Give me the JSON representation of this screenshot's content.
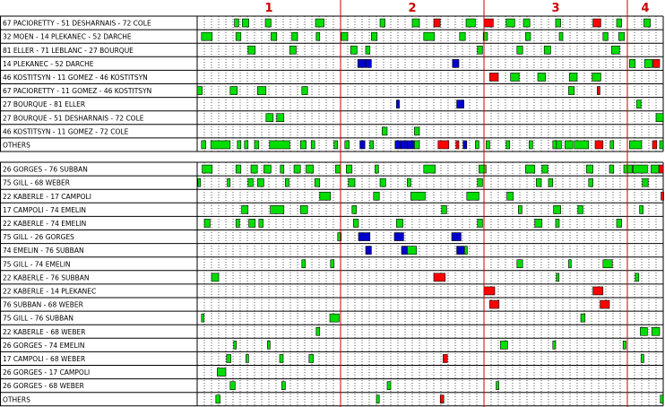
{
  "periods": [
    "1",
    "2",
    "3",
    "4"
  ],
  "colors": {
    "even": "#00dd00",
    "pp": "#ff0000",
    "pk": "#0000cc",
    "period_line": "#cc0000",
    "grid": "#000000",
    "grid_dot": "#555555"
  },
  "chart_data": {
    "type": "timeline",
    "x_unit": "game minute",
    "x_range": [
      0,
      65
    ],
    "period_starts": [
      0,
      20,
      40,
      60
    ],
    "forwards": [
      {
        "line": "67 PACIORETTY - 51 DESHARNAIS - 72 COLE",
        "shifts": [
          [
            5.2,
            5.8,
            "even"
          ],
          [
            6.3,
            7.2,
            "even"
          ],
          [
            9.5,
            10.3,
            "even"
          ],
          [
            16.5,
            17.7,
            "even"
          ],
          [
            25.5,
            26.2,
            "even"
          ],
          [
            30,
            31,
            "even"
          ],
          [
            33,
            33.9,
            "pp"
          ],
          [
            37.5,
            38.8,
            "even"
          ],
          [
            40,
            41.3,
            "pp"
          ],
          [
            43.1,
            44.3,
            "even"
          ],
          [
            45.5,
            46.4,
            "even"
          ],
          [
            50,
            50.7,
            "even"
          ],
          [
            55.2,
            56.3,
            "pp"
          ],
          [
            58.5,
            59.2,
            "even"
          ],
          [
            62.3,
            63.2,
            "even"
          ]
        ]
      },
      {
        "line": "32 MOEN - 14 PLEKANEC - 52 DARCHE",
        "shifts": [
          [
            0.6,
            2.1,
            "even"
          ],
          [
            5.4,
            6.1,
            "even"
          ],
          [
            10.3,
            11.1,
            "even"
          ],
          [
            13.2,
            14,
            "even"
          ],
          [
            16.6,
            17.1,
            "even"
          ],
          [
            20.1,
            21,
            "even"
          ],
          [
            24.3,
            25.1,
            "even"
          ],
          [
            31.6,
            33.1,
            "even"
          ],
          [
            36.6,
            37.4,
            "even"
          ],
          [
            39.9,
            40.5,
            "even"
          ],
          [
            45.8,
            46.5,
            "even"
          ],
          [
            50.5,
            51,
            "even"
          ],
          [
            56.6,
            57.3,
            "even"
          ],
          [
            58.8,
            59.6,
            "even"
          ]
        ]
      },
      {
        "line": "81 ELLER - 71 LEBLANC - 27 BOURQUE",
        "shifts": [
          [
            7.1,
            8.1,
            "even"
          ],
          [
            12.9,
            13.8,
            "even"
          ],
          [
            21.4,
            22.3,
            "even"
          ],
          [
            23.5,
            24.1,
            "even"
          ],
          [
            39.1,
            39.8,
            "even"
          ],
          [
            44.6,
            45.4,
            "even"
          ],
          [
            48.4,
            49.3,
            "even"
          ],
          [
            57.8,
            58.9,
            "even"
          ]
        ]
      },
      {
        "line": "14 PLEKANEC - 52 DARCHE",
        "shifts": [
          [
            22.4,
            23.5,
            "pk"
          ],
          [
            23.5,
            24.3,
            "pk"
          ],
          [
            35.6,
            36.5,
            "pk"
          ],
          [
            60.3,
            61.1,
            "even"
          ],
          [
            62.4,
            63.5,
            "even"
          ],
          [
            63.6,
            64.5,
            "pp"
          ]
        ]
      },
      {
        "line": "46 KOSTITSYN - 11 GOMEZ - 46 KOSTITSYN",
        "shifts": [
          [
            40.8,
            42,
            "pp"
          ],
          [
            43.7,
            44.9,
            "even"
          ],
          [
            47.5,
            48.6,
            "even"
          ],
          [
            51.9,
            53,
            "even"
          ],
          [
            55.1,
            56.3,
            "even"
          ]
        ]
      },
      {
        "line": "67 PACIORETTY - 11 GOMEZ - 46 KOSTITSYN",
        "shifts": [
          [
            0,
            0.7,
            "even"
          ],
          [
            4.6,
            5.6,
            "even"
          ],
          [
            8.4,
            9.6,
            "even"
          ],
          [
            14.6,
            15.4,
            "even"
          ],
          [
            51.8,
            52.6,
            "even"
          ],
          [
            55.8,
            56,
            "pp"
          ]
        ]
      },
      {
        "line": "27 BOURQUE - 81 ELLER",
        "shifts": [
          [
            27.8,
            28.2,
            "pk"
          ],
          [
            36.2,
            37.2,
            "pk"
          ],
          [
            61.3,
            61.9,
            "even"
          ]
        ]
      },
      {
        "line": "27 BOURQUE - 51 DESHARNAIS - 72 COLE",
        "shifts": [
          [
            9.6,
            10.6,
            "even"
          ],
          [
            11.1,
            12.1,
            "even"
          ],
          [
            64,
            65,
            "even"
          ]
        ]
      },
      {
        "line": "46 KOSTITSYN - 11 GOMEZ - 72 COLE",
        "shifts": [
          [
            25.8,
            26.5,
            "even"
          ],
          [
            30.3,
            31,
            "even"
          ]
        ]
      },
      {
        "line": "OTHERS",
        "shifts": [
          [
            0.6,
            1.2,
            "even"
          ],
          [
            1.9,
            4.6,
            "even"
          ],
          [
            5.6,
            6.1,
            "even"
          ],
          [
            6.6,
            7.1,
            "even"
          ],
          [
            8,
            8.6,
            "even"
          ],
          [
            10.1,
            12.9,
            "even"
          ],
          [
            14.4,
            15.2,
            "even"
          ],
          [
            15.9,
            16.4,
            "even"
          ],
          [
            19.1,
            19.6,
            "even"
          ],
          [
            20.6,
            21.2,
            "even"
          ],
          [
            22.7,
            23.4,
            "pk"
          ],
          [
            24.1,
            24.6,
            "even"
          ],
          [
            27.6,
            28.4,
            "pk"
          ],
          [
            28.4,
            29.3,
            "pk"
          ],
          [
            29.3,
            30.3,
            "pk"
          ],
          [
            30.3,
            31,
            "even"
          ],
          [
            33.6,
            35.1,
            "pp"
          ],
          [
            36.1,
            36.5,
            "pp"
          ],
          [
            37.1,
            37.6,
            "pk"
          ],
          [
            38.8,
            39.3,
            "even"
          ],
          [
            40.3,
            40.8,
            "even"
          ],
          [
            43.1,
            43.6,
            "even"
          ],
          [
            46.3,
            46.8,
            "even"
          ],
          [
            49.6,
            50.1,
            "even"
          ],
          [
            50.1,
            50.8,
            "even"
          ],
          [
            51.3,
            52.4,
            "even"
          ],
          [
            52.6,
            54.6,
            "even"
          ],
          [
            55.5,
            56.6,
            "pp"
          ],
          [
            57.6,
            58.1,
            "even"
          ],
          [
            60.3,
            62,
            "even"
          ],
          [
            63.5,
            64.1,
            "pp"
          ],
          [
            64.5,
            65,
            "even"
          ]
        ]
      }
    ],
    "defense": [
      {
        "line": "26 GORGES - 76 SUBBAN",
        "shifts": [
          [
            0.7,
            2.1,
            "even"
          ],
          [
            5.4,
            6.1,
            "even"
          ],
          [
            7.5,
            8.4,
            "even"
          ],
          [
            9.3,
            10.3,
            "even"
          ],
          [
            11.6,
            12.1,
            "even"
          ],
          [
            13.5,
            14.4,
            "even"
          ],
          [
            15.2,
            16.2,
            "even"
          ],
          [
            19.3,
            20,
            "even"
          ],
          [
            20.8,
            21.6,
            "even"
          ],
          [
            24.8,
            25.3,
            "even"
          ],
          [
            31.6,
            33.2,
            "even"
          ],
          [
            39.3,
            40.3,
            "even"
          ],
          [
            45.8,
            47.1,
            "even"
          ],
          [
            48.1,
            48.9,
            "even"
          ],
          [
            54.3,
            55.2,
            "even"
          ],
          [
            57.5,
            58.1,
            "even"
          ],
          [
            59.5,
            60.7,
            "even"
          ],
          [
            60.8,
            62.8,
            "even"
          ],
          [
            63.3,
            64.4,
            "even"
          ],
          [
            64.4,
            65,
            "pp"
          ]
        ]
      },
      {
        "line": "75 GILL - 68 WEBER",
        "shifts": [
          [
            0.1,
            0.4,
            "even"
          ],
          [
            4.2,
            4.6,
            "even"
          ],
          [
            7.1,
            7.8,
            "even"
          ],
          [
            8.4,
            9.3,
            "even"
          ],
          [
            12.3,
            12.8,
            "even"
          ],
          [
            16.4,
            17.1,
            "even"
          ],
          [
            21.1,
            22,
            "even"
          ],
          [
            25.5,
            26.3,
            "even"
          ],
          [
            29.3,
            29.8,
            "even"
          ],
          [
            39.1,
            39.8,
            "even"
          ],
          [
            47.3,
            48,
            "even"
          ],
          [
            49,
            49.6,
            "even"
          ],
          [
            54.6,
            55.2,
            "even"
          ],
          [
            62.1,
            62.9,
            "even"
          ]
        ]
      },
      {
        "line": "22 KABERLE - 17 CAMPOLI",
        "shifts": [
          [
            17.1,
            18.6,
            "even"
          ],
          [
            24.6,
            25.4,
            "even"
          ],
          [
            29.8,
            31.8,
            "even"
          ],
          [
            37.6,
            39.3,
            "even"
          ],
          [
            43.2,
            44.1,
            "even"
          ],
          [
            64.7,
            65,
            "pp"
          ]
        ]
      },
      {
        "line": "17 CAMPOLI - 74 EMELIN",
        "shifts": [
          [
            6.2,
            7.1,
            "even"
          ],
          [
            10.2,
            12.1,
            "even"
          ],
          [
            14.4,
            15.4,
            "even"
          ],
          [
            21.6,
            22.2,
            "even"
          ],
          [
            34.1,
            34.8,
            "even"
          ],
          [
            44.8,
            45.3,
            "even"
          ],
          [
            49.7,
            50.7,
            "even"
          ],
          [
            53.1,
            53.8,
            "even"
          ],
          [
            61.7,
            62.2,
            "even"
          ]
        ]
      },
      {
        "line": "22 KABERLE - 74 EMELIN",
        "shifts": [
          [
            1,
            1.8,
            "even"
          ],
          [
            5.4,
            5.9,
            "even"
          ],
          [
            7.2,
            8.1,
            "even"
          ],
          [
            8.6,
            9.2,
            "even"
          ],
          [
            21.8,
            22.5,
            "even"
          ],
          [
            27.8,
            28.7,
            "even"
          ],
          [
            39.1,
            39.8,
            "even"
          ],
          [
            47.1,
            48.1,
            "even"
          ],
          [
            50,
            50.5,
            "even"
          ],
          [
            58.5,
            59.2,
            "even"
          ]
        ]
      },
      {
        "line": "75 GILL - 26 GORGES",
        "shifts": [
          [
            19.6,
            20.1,
            "even"
          ],
          [
            22.5,
            24.1,
            "pk"
          ],
          [
            27.5,
            28.8,
            "pk"
          ],
          [
            35.5,
            36.8,
            "pk"
          ]
        ]
      },
      {
        "line": "74 EMELIN - 76 SUBBAN",
        "shifts": [
          [
            23.5,
            24.3,
            "pk"
          ],
          [
            28.5,
            29.3,
            "pk"
          ],
          [
            29.3,
            30.6,
            "even"
          ],
          [
            36.2,
            37.2,
            "pk"
          ],
          [
            37.3,
            37.6,
            "even"
          ]
        ]
      },
      {
        "line": "75 GILL - 74 EMELIN",
        "shifts": [
          [
            14.6,
            15.1,
            "even"
          ],
          [
            18.6,
            19.1,
            "even"
          ],
          [
            44.6,
            45.4,
            "even"
          ],
          [
            51.8,
            52.1,
            "even"
          ],
          [
            56.6,
            57.9,
            "even"
          ]
        ]
      },
      {
        "line": "22 KABERLE - 76 SUBBAN",
        "shifts": [
          [
            2,
            3,
            "even"
          ],
          [
            33,
            34.6,
            "pp"
          ],
          [
            50.1,
            50.4,
            "even"
          ],
          [
            61.1,
            61.6,
            "even"
          ]
        ]
      },
      {
        "line": "22 KABERLE - 14 PLEKANEC",
        "shifts": [
          [
            40,
            41.5,
            "pp"
          ],
          [
            55.2,
            56.6,
            "pp"
          ]
        ]
      },
      {
        "line": "76 SUBBAN - 68 WEBER",
        "shifts": [
          [
            40.8,
            42.1,
            "pp"
          ],
          [
            56.2,
            57.5,
            "pp"
          ]
        ]
      },
      {
        "line": "75 GILL - 76 SUBBAN",
        "shifts": [
          [
            0.6,
            0.9,
            "even"
          ],
          [
            18.5,
            19.8,
            "even"
          ],
          [
            53.5,
            54.1,
            "even"
          ]
        ]
      },
      {
        "line": "22 KABERLE - 68 WEBER",
        "shifts": [
          [
            16.6,
            17.1,
            "even"
          ],
          [
            61.8,
            62.8,
            "even"
          ],
          [
            63.4,
            64.5,
            "even"
          ]
        ]
      },
      {
        "line": "26 GORGES - 74 EMELIN",
        "shifts": [
          [
            5.1,
            5.4,
            "even"
          ],
          [
            9.8,
            10.1,
            "even"
          ],
          [
            42.3,
            43.3,
            "even"
          ],
          [
            49.6,
            50,
            "even"
          ],
          [
            59.4,
            59.8,
            "even"
          ]
        ]
      },
      {
        "line": "17 CAMPOLI - 68 WEBER",
        "shifts": [
          [
            4.1,
            4.7,
            "even"
          ],
          [
            6.8,
            7.1,
            "even"
          ],
          [
            11.5,
            12,
            "even"
          ],
          [
            15.6,
            16.2,
            "even"
          ],
          [
            34.3,
            34.9,
            "pp"
          ],
          [
            61.9,
            62.3,
            "even"
          ]
        ]
      },
      {
        "line": "26 GORGES - 17 CAMPOLI",
        "shifts": [
          [
            2.8,
            4,
            "even"
          ]
        ]
      },
      {
        "line": "26 GORGES - 68 WEBER",
        "shifts": [
          [
            4.6,
            5.3,
            "even"
          ],
          [
            11.8,
            12.3,
            "even"
          ],
          [
            26.5,
            27,
            "even"
          ],
          [
            41.7,
            42,
            "even"
          ]
        ]
      },
      {
        "line": "OTHERS",
        "shifts": [
          [
            2.6,
            3.2,
            "even"
          ],
          [
            25,
            25.4,
            "even"
          ],
          [
            33.9,
            34.4,
            "pp"
          ],
          [
            64.6,
            65,
            "even"
          ]
        ]
      }
    ]
  }
}
